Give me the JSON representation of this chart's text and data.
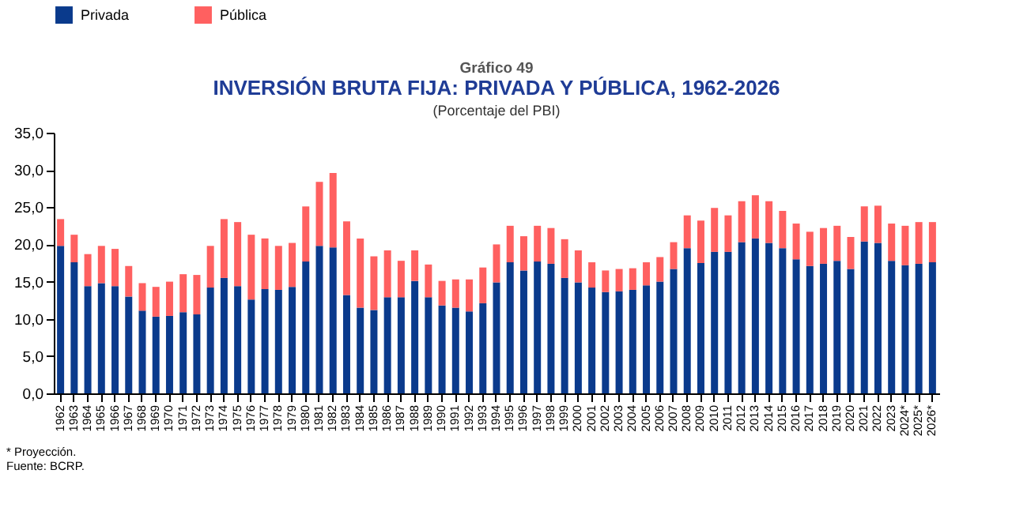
{
  "chart_data": {
    "type": "bar",
    "title": "INVERSIÓN BRUTA FIJA: PRIVADA Y PÚBLICA, 1962-2026",
    "subtitle": "(Porcentaje del PBI)",
    "annotations": [
      "Gráfico 49",
      "* Proyección.",
      "Fuente: BCRP."
    ],
    "categories": [
      "1962",
      "1963",
      "1964",
      "1965",
      "1966",
      "1967",
      "1968",
      "1969",
      "1970",
      "1971",
      "1972",
      "1973",
      "1974",
      "1975",
      "1976",
      "1977",
      "1978",
      "1979",
      "1980",
      "1981",
      "1982",
      "1983",
      "1984",
      "1985",
      "1986",
      "1987",
      "1988",
      "1989",
      "1990",
      "1991",
      "1992",
      "1993",
      "1994",
      "1995",
      "1996",
      "1997",
      "1998",
      "1999",
      "2000",
      "2001",
      "2002",
      "2003",
      "2004",
      "2005",
      "2006",
      "2007",
      "2008",
      "2009",
      "2010",
      "2011",
      "2012",
      "2013",
      "2014",
      "2015",
      "2016",
      "2017",
      "2018",
      "2019",
      "2020",
      "2021",
      "2022",
      "2023",
      "2024*",
      "2025*",
      "2026*"
    ],
    "series": [
      {
        "name": "Privada",
        "color": "#0a3a8c",
        "values": [
          19.8,
          17.6,
          14.4,
          14.8,
          14.4,
          13.0,
          11.1,
          10.3,
          10.4,
          10.9,
          10.6,
          14.2,
          15.5,
          14.4,
          12.6,
          14.0,
          13.9,
          14.3,
          17.7,
          19.8,
          19.6,
          13.2,
          11.5,
          11.2,
          12.9,
          12.9,
          15.1,
          12.9,
          11.8,
          11.5,
          11.0,
          12.1,
          14.9,
          17.6,
          16.5,
          17.7,
          17.4,
          15.5,
          14.9,
          14.2,
          13.6,
          13.7,
          13.9,
          14.5,
          15.0,
          16.7,
          19.5,
          17.5,
          19.0,
          19.0,
          20.3,
          20.8,
          20.2,
          19.5,
          18.0,
          17.1,
          17.4,
          17.8,
          16.7,
          20.4,
          20.2,
          17.8,
          17.2,
          17.4,
          17.6
        ]
      },
      {
        "name": "Pública",
        "color": "#ff6060",
        "values": [
          3.6,
          3.7,
          4.3,
          5.0,
          5.0,
          4.1,
          3.7,
          4.0,
          4.6,
          5.1,
          5.3,
          5.6,
          7.9,
          8.6,
          8.7,
          6.8,
          5.9,
          5.9,
          7.4,
          8.6,
          10.0,
          9.9,
          9.3,
          7.2,
          6.3,
          4.9,
          4.1,
          4.4,
          3.3,
          3.8,
          4.3,
          4.8,
          5.1,
          4.9,
          4.6,
          4.8,
          4.8,
          5.2,
          4.3,
          3.4,
          2.9,
          3.0,
          2.9,
          3.1,
          3.3,
          3.6,
          4.4,
          5.7,
          5.9,
          4.9,
          5.5,
          5.8,
          5.6,
          5.0,
          4.8,
          4.6,
          4.8,
          4.7,
          4.3,
          4.7,
          5.0,
          5.0,
          5.3,
          5.6,
          5.4
        ]
      }
    ],
    "stacked": true,
    "ylim": [
      0,
      35
    ],
    "yticks": [
      {
        "value": 0,
        "label": "0,0"
      },
      {
        "value": 5,
        "label": "5,0"
      },
      {
        "value": 10,
        "label": "10,0"
      },
      {
        "value": 15,
        "label": "15,0"
      },
      {
        "value": 20,
        "label": "20,0"
      },
      {
        "value": 25,
        "label": "25,0"
      },
      {
        "value": 30,
        "label": "30,0"
      },
      {
        "value": 35,
        "label": "35,0"
      }
    ],
    "grid": false,
    "legend": "top"
  }
}
